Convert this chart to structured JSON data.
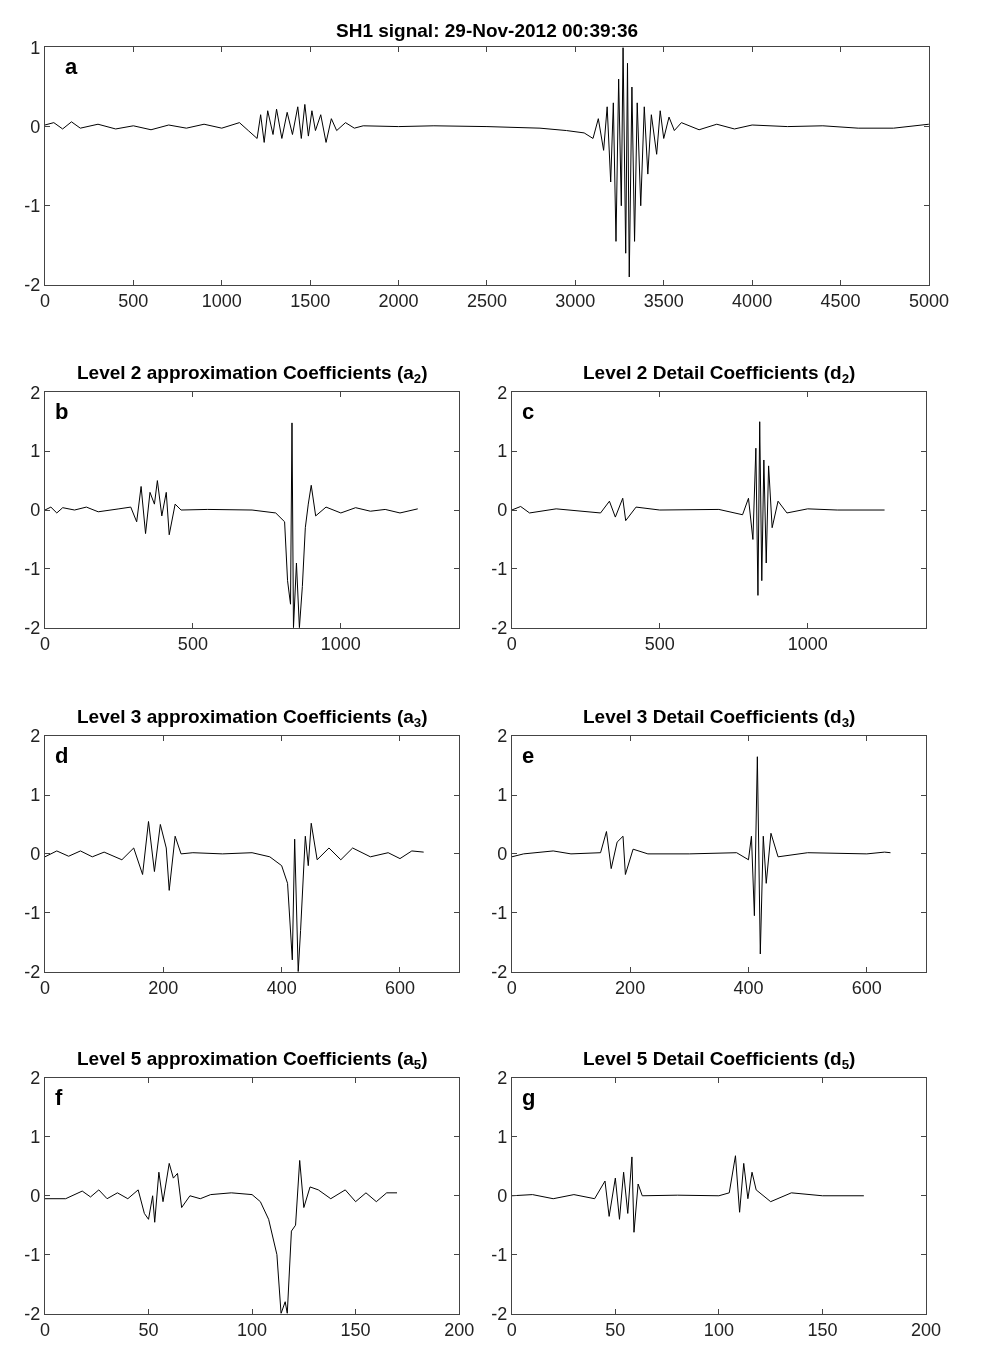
{
  "chart_data": [
    {
      "type": "line",
      "title": "SH1 signal: 29-Nov-2012 00:39:36",
      "annotations": [
        "a"
      ],
      "color": "#000000",
      "xlim": [
        0,
        5000
      ],
      "xticks": [
        0,
        500,
        1000,
        1500,
        2000,
        2500,
        3000,
        3500,
        4000,
        4500,
        5000
      ],
      "ylim": [
        -2,
        1
      ],
      "yticks": [
        -2,
        -1,
        0,
        1
      ],
      "x": [
        0,
        50,
        100,
        150,
        200,
        300,
        400,
        500,
        600,
        700,
        800,
        900,
        1000,
        1100,
        1150,
        1200,
        1220,
        1240,
        1260,
        1290,
        1310,
        1340,
        1370,
        1400,
        1430,
        1450,
        1470,
        1490,
        1510,
        1530,
        1560,
        1590,
        1620,
        1650,
        1700,
        1750,
        1800,
        2000,
        2200,
        2500,
        2800,
        2950,
        3050,
        3100,
        3130,
        3160,
        3180,
        3200,
        3215,
        3230,
        3245,
        3260,
        3270,
        3285,
        3295,
        3305,
        3320,
        3335,
        3350,
        3370,
        3390,
        3410,
        3430,
        3460,
        3480,
        3500,
        3530,
        3560,
        3600,
        3700,
        3800,
        3900,
        4000,
        4200,
        4400,
        4600,
        4800,
        5000
      ],
      "values": [
        0.02,
        0.05,
        -0.03,
        0.06,
        -0.02,
        0.03,
        -0.03,
        0.01,
        -0.04,
        0.02,
        -0.02,
        0.03,
        -0.02,
        0.05,
        -0.05,
        -0.15,
        0.15,
        -0.2,
        0.2,
        -0.1,
        0.22,
        -0.15,
        0.18,
        -0.1,
        0.25,
        -0.15,
        0.28,
        -0.12,
        0.2,
        -0.05,
        0.15,
        -0.2,
        0.1,
        -0.05,
        0.05,
        -0.02,
        0.01,
        0.0,
        0.01,
        0.0,
        -0.02,
        -0.05,
        -0.08,
        -0.15,
        0.1,
        -0.3,
        0.25,
        -0.7,
        0.3,
        -1.45,
        0.6,
        -1.0,
        1.0,
        -1.6,
        0.8,
        -1.9,
        0.5,
        -1.45,
        0.3,
        -1.0,
        0.25,
        -0.6,
        0.15,
        -0.35,
        0.2,
        -0.15,
        0.12,
        -0.05,
        0.05,
        -0.04,
        0.03,
        -0.03,
        0.02,
        0.0,
        0.01,
        -0.02,
        -0.02,
        0.03
      ]
    },
    {
      "type": "line",
      "title": "Level 2 approximation Coefficients (a$_{2}$)",
      "annotations": [
        "b"
      ],
      "color": "#000000",
      "xlim": [
        0,
        1400
      ],
      "xticks": [
        0,
        500,
        1000
      ],
      "ylim": [
        -2,
        2
      ],
      "yticks": [
        -2,
        -1,
        0,
        1,
        2
      ],
      "x": [
        0,
        20,
        40,
        60,
        100,
        140,
        180,
        250,
        290,
        310,
        325,
        340,
        355,
        370,
        380,
        395,
        410,
        420,
        440,
        460,
        550,
        700,
        780,
        810,
        820,
        830,
        835,
        840,
        850,
        860,
        870,
        880,
        890,
        900,
        915,
        950,
        1000,
        1050,
        1100,
        1150,
        1200,
        1260
      ],
      "values": [
        0,
        0.05,
        -0.05,
        0.04,
        0.0,
        0.05,
        -0.03,
        0.02,
        0.05,
        -0.2,
        0.4,
        -0.4,
        0.3,
        0.1,
        0.5,
        -0.1,
        0.3,
        -0.42,
        0.1,
        0.0,
        0.01,
        0.0,
        -0.05,
        -0.2,
        -1.2,
        -1.6,
        1.48,
        -2,
        -0.9,
        -2,
        -1.3,
        -0.3,
        0.1,
        0.42,
        -0.1,
        0.05,
        -0.05,
        0.04,
        -0.02,
        0.01,
        -0.05,
        0.02
      ]
    },
    {
      "type": "line",
      "title": "Level 2 Detail Coefficients (d$_{2}$)",
      "annotations": [
        "c"
      ],
      "color": "#000000",
      "xlim": [
        0,
        1400
      ],
      "xticks": [
        0,
        500,
        1000
      ],
      "ylim": [
        -2,
        2
      ],
      "yticks": [
        -2,
        -1,
        0,
        1,
        2
      ],
      "x": [
        0,
        30,
        60,
        150,
        300,
        330,
        350,
        375,
        385,
        420,
        500,
        700,
        780,
        800,
        815,
        825,
        832,
        838,
        845,
        852,
        860,
        868,
        880,
        900,
        930,
        1000,
        1100,
        1260
      ],
      "values": [
        0,
        0.06,
        -0.05,
        0.02,
        -0.05,
        0.15,
        -0.12,
        0.2,
        -0.18,
        0.05,
        0,
        0.01,
        -0.08,
        0.2,
        -0.5,
        1.05,
        -1.45,
        1.5,
        -1.2,
        0.85,
        -0.9,
        0.75,
        -0.3,
        0.15,
        -0.05,
        0.02,
        0.0,
        0.0
      ]
    },
    {
      "type": "line",
      "title": "Level 3 approximation Coefficients (a$_{3}$)",
      "annotations": [
        "d"
      ],
      "color": "#000000",
      "xlim": [
        0,
        700
      ],
      "xticks": [
        0,
        200,
        400,
        600
      ],
      "ylim": [
        -2,
        2
      ],
      "yticks": [
        -2,
        -1,
        0,
        1,
        2
      ],
      "x": [
        0,
        20,
        40,
        60,
        80,
        100,
        130,
        150,
        165,
        175,
        185,
        195,
        205,
        210,
        220,
        230,
        250,
        300,
        350,
        380,
        400,
        410,
        418,
        422,
        428,
        432,
        440,
        445,
        450,
        460,
        480,
        500,
        520,
        550,
        580,
        600,
        620,
        640
      ],
      "values": [
        -0.05,
        0.05,
        -0.04,
        0.05,
        -0.05,
        0.03,
        -0.1,
        0.1,
        -0.35,
        0.55,
        -0.3,
        0.5,
        0.1,
        -0.62,
        0.3,
        0,
        0.02,
        0,
        0.02,
        -0.05,
        -0.2,
        -0.5,
        -1.8,
        0.25,
        -2,
        -1.3,
        0.3,
        -0.2,
        0.52,
        -0.1,
        0.1,
        -0.1,
        0.1,
        -0.05,
        0.02,
        -0.08,
        0.05,
        0.03
      ]
    },
    {
      "type": "line",
      "title": "Level 3 Detail Coefficients (d$_{3}$)",
      "annotations": [
        "e"
      ],
      "color": "#000000",
      "xlim": [
        0,
        700
      ],
      "xticks": [
        0,
        200,
        400,
        600
      ],
      "ylim": [
        -2,
        2
      ],
      "yticks": [
        -2,
        -1,
        0,
        1,
        2
      ],
      "x": [
        0,
        20,
        70,
        100,
        150,
        160,
        168,
        178,
        188,
        192,
        205,
        230,
        300,
        380,
        400,
        405,
        410,
        415,
        420,
        425,
        430,
        438,
        450,
        500,
        600,
        630,
        640
      ],
      "values": [
        -0.05,
        0.0,
        0.05,
        0,
        0.02,
        0.38,
        -0.25,
        0.2,
        0.3,
        -0.35,
        0.08,
        0,
        0,
        0.02,
        -0.1,
        0.3,
        -1.05,
        1.65,
        -1.7,
        0.3,
        -0.5,
        0.35,
        -0.05,
        0.02,
        0,
        0.03,
        0.02
      ]
    },
    {
      "type": "line",
      "title": "Level 5 approximation Coefficients (a$_{5}$)",
      "annotations": [
        "f"
      ],
      "color": "#000000",
      "xlim": [
        0,
        200
      ],
      "xticks": [
        0,
        50,
        100,
        150,
        200
      ],
      "ylim": [
        -2,
        2
      ],
      "yticks": [
        -2,
        -1,
        0,
        1,
        2
      ],
      "x": [
        0,
        10,
        18,
        22,
        26,
        30,
        35,
        40,
        45,
        48,
        50,
        52,
        53,
        55,
        57,
        60,
        62,
        64,
        66,
        70,
        75,
        80,
        90,
        100,
        104,
        108,
        112,
        114,
        116,
        117,
        119,
        121,
        123,
        125,
        128,
        132,
        138,
        145,
        150,
        155,
        160,
        165,
        170
      ],
      "values": [
        -0.05,
        -0.05,
        0.08,
        -0.02,
        0.1,
        -0.05,
        0.05,
        -0.05,
        0.1,
        -0.3,
        -0.4,
        0.0,
        -0.45,
        0.4,
        -0.1,
        0.55,
        0.3,
        0.38,
        -0.2,
        0.0,
        -0.05,
        0.02,
        0.05,
        0.02,
        -0.1,
        -0.4,
        -1.0,
        -2,
        -1.8,
        -2,
        -0.6,
        -0.5,
        0.6,
        -0.2,
        0.15,
        0.1,
        -0.05,
        0.1,
        -0.1,
        0.05,
        -0.1,
        0.05,
        0.05
      ]
    },
    {
      "type": "line",
      "title": "Level 5 Detail Coefficients (d$_{5}$)",
      "annotations": [
        "g"
      ],
      "color": "#000000",
      "xlim": [
        0,
        200
      ],
      "xticks": [
        0,
        50,
        100,
        150,
        200
      ],
      "ylim": [
        -2,
        2
      ],
      "yticks": [
        -2,
        -1,
        0,
        1,
        2
      ],
      "x": [
        0,
        10,
        20,
        30,
        40,
        45,
        47,
        50,
        52,
        54,
        56,
        58,
        59,
        61,
        63,
        80,
        100,
        105,
        108,
        110,
        112,
        114,
        116,
        118,
        125,
        135,
        150,
        170
      ],
      "values": [
        0,
        0.02,
        -0.05,
        0.02,
        -0.05,
        0.25,
        -0.35,
        0.3,
        -0.4,
        0.4,
        -0.3,
        0.66,
        -0.62,
        0.2,
        0,
        0.01,
        0,
        0.05,
        0.68,
        -0.28,
        0.55,
        -0.05,
        0.4,
        0.1,
        -0.1,
        0.05,
        0,
        0
      ]
    }
  ]
}
